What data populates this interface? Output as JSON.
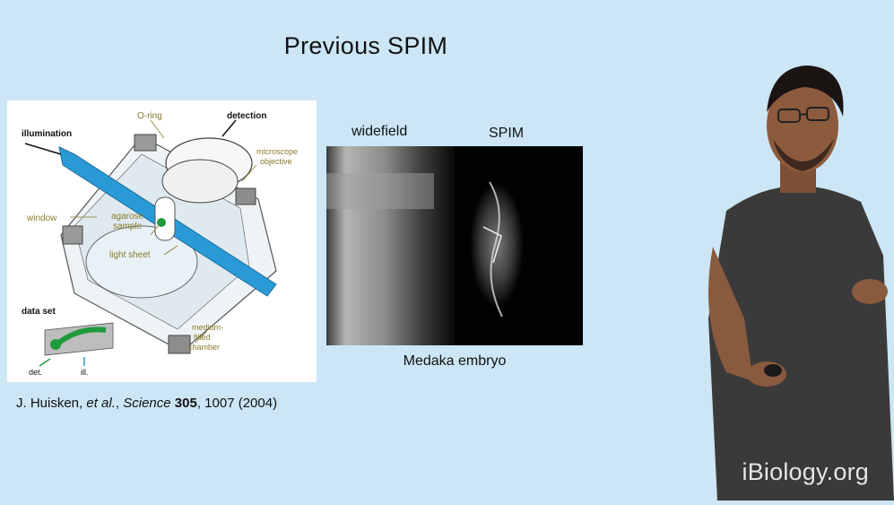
{
  "slide": {
    "title": "Previous SPIM"
  },
  "diagram": {
    "labels": {
      "illumination": "illumination",
      "o_ring": "O-ring",
      "detection": "detection",
      "microscope_objective_1": "microscope",
      "microscope_objective_2": "objective",
      "window": "window",
      "agarose_sample_1": "agarose",
      "agarose_sample_2": "sample",
      "light_sheet": "light sheet",
      "data_set": "data set",
      "det": "det.",
      "ill": "ill.",
      "medium_1": "medium-",
      "medium_2": "filled",
      "medium_3": "chamber"
    },
    "colors": {
      "beam": "#2a9ad6",
      "sample": "#1f9a3e",
      "annotation": "#8a7a2a"
    }
  },
  "citation": {
    "authors": "J. Huisken,",
    "etal": "et al.",
    "journal": "Science",
    "volume": "305",
    "rest": ", 1007 (2004)"
  },
  "images": {
    "widefield_label": "widefield",
    "spim_label": "SPIM",
    "caption": "Medaka embryo"
  },
  "watermark": "iBiology.org"
}
